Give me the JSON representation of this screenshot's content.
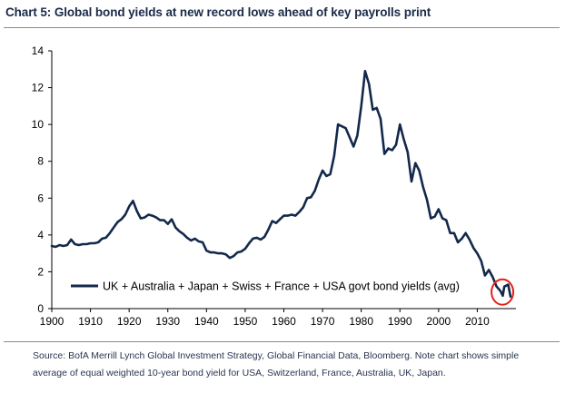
{
  "header": {
    "title": "Chart 5: Global bond yields at new record lows ahead of key payrolls print"
  },
  "footer": {
    "source": "Source: BofA Merrill Lynch Global Investment Strategy, Global Financial Data, Bloomberg. Note chart shows simple average of equal weighted 10-year bond yield for USA, Switzerland, France, Australia, UK, Japan."
  },
  "colors": {
    "series": "#13294b",
    "highlight": "#e32118",
    "axis": "#000000"
  },
  "chart_data": {
    "type": "line",
    "title": "Chart 5: Global bond yields at new record lows ahead of key payrolls print",
    "xlabel": "",
    "ylabel": "",
    "xlim": [
      1900,
      2020
    ],
    "ylim": [
      0,
      14
    ],
    "x_ticks": [
      1900,
      1910,
      1920,
      1930,
      1940,
      1950,
      1960,
      1970,
      1980,
      1990,
      2000,
      2010
    ],
    "y_ticks": [
      0,
      2,
      4,
      6,
      8,
      10,
      12,
      14
    ],
    "grid": false,
    "legend_position": "bottom-left",
    "annotations": [
      {
        "type": "circle",
        "x": 2016.5,
        "y": 0.9,
        "color": "#e32118",
        "note": "record low"
      }
    ],
    "series": [
      {
        "name": "UK + Australia + Japan + Swiss + France + USA govt bond yields (avg)",
        "points": [
          [
            1900,
            3.4
          ],
          [
            1901,
            3.35
          ],
          [
            1902,
            3.45
          ],
          [
            1903,
            3.4
          ],
          [
            1904,
            3.45
          ],
          [
            1905,
            3.75
          ],
          [
            1906,
            3.5
          ],
          [
            1907,
            3.45
          ],
          [
            1908,
            3.5
          ],
          [
            1909,
            3.5
          ],
          [
            1910,
            3.55
          ],
          [
            1911,
            3.55
          ],
          [
            1912,
            3.6
          ],
          [
            1913,
            3.8
          ],
          [
            1914,
            3.85
          ],
          [
            1915,
            4.1
          ],
          [
            1916,
            4.4
          ],
          [
            1917,
            4.7
          ],
          [
            1918,
            4.85
          ],
          [
            1919,
            5.1
          ],
          [
            1920,
            5.55
          ],
          [
            1921,
            5.85
          ],
          [
            1922,
            5.3
          ],
          [
            1923,
            4.9
          ],
          [
            1924,
            4.95
          ],
          [
            1925,
            5.1
          ],
          [
            1926,
            5.05
          ],
          [
            1927,
            4.95
          ],
          [
            1928,
            4.8
          ],
          [
            1929,
            4.8
          ],
          [
            1930,
            4.6
          ],
          [
            1931,
            4.85
          ],
          [
            1932,
            4.4
          ],
          [
            1933,
            4.2
          ],
          [
            1934,
            4.05
          ],
          [
            1935,
            3.85
          ],
          [
            1936,
            3.7
          ],
          [
            1937,
            3.8
          ],
          [
            1938,
            3.65
          ],
          [
            1939,
            3.6
          ],
          [
            1940,
            3.15
          ],
          [
            1941,
            3.05
          ],
          [
            1942,
            3.05
          ],
          [
            1943,
            3.0
          ],
          [
            1944,
            3.0
          ],
          [
            1945,
            2.95
          ],
          [
            1946,
            2.75
          ],
          [
            1947,
            2.85
          ],
          [
            1948,
            3.05
          ],
          [
            1949,
            3.1
          ],
          [
            1950,
            3.25
          ],
          [
            1951,
            3.55
          ],
          [
            1952,
            3.8
          ],
          [
            1953,
            3.85
          ],
          [
            1954,
            3.75
          ],
          [
            1955,
            3.9
          ],
          [
            1956,
            4.3
          ],
          [
            1957,
            4.75
          ],
          [
            1958,
            4.65
          ],
          [
            1959,
            4.85
          ],
          [
            1960,
            5.05
          ],
          [
            1961,
            5.05
          ],
          [
            1962,
            5.1
          ],
          [
            1963,
            5.05
          ],
          [
            1964,
            5.25
          ],
          [
            1965,
            5.5
          ],
          [
            1966,
            6.0
          ],
          [
            1967,
            6.05
          ],
          [
            1968,
            6.4
          ],
          [
            1969,
            7.0
          ],
          [
            1970,
            7.5
          ],
          [
            1971,
            7.2
          ],
          [
            1972,
            7.3
          ],
          [
            1973,
            8.3
          ],
          [
            1974,
            10.0
          ],
          [
            1975,
            9.9
          ],
          [
            1976,
            9.8
          ],
          [
            1977,
            9.3
          ],
          [
            1978,
            8.8
          ],
          [
            1979,
            9.4
          ],
          [
            1980,
            11.0
          ],
          [
            1981,
            12.9
          ],
          [
            1982,
            12.2
          ],
          [
            1983,
            10.8
          ],
          [
            1984,
            10.9
          ],
          [
            1985,
            10.3
          ],
          [
            1986,
            8.4
          ],
          [
            1987,
            8.7
          ],
          [
            1988,
            8.6
          ],
          [
            1989,
            8.9
          ],
          [
            1990,
            10.0
          ],
          [
            1991,
            9.2
          ],
          [
            1992,
            8.5
          ],
          [
            1993,
            6.9
          ],
          [
            1994,
            7.9
          ],
          [
            1995,
            7.5
          ],
          [
            1996,
            6.6
          ],
          [
            1997,
            5.9
          ],
          [
            1998,
            4.9
          ],
          [
            1999,
            5.0
          ],
          [
            2000,
            5.4
          ],
          [
            2001,
            4.9
          ],
          [
            2002,
            4.8
          ],
          [
            2003,
            4.1
          ],
          [
            2004,
            4.1
          ],
          [
            2005,
            3.6
          ],
          [
            2006,
            3.8
          ],
          [
            2007,
            4.1
          ],
          [
            2008,
            3.75
          ],
          [
            2009,
            3.3
          ],
          [
            2010,
            3.0
          ],
          [
            2011,
            2.6
          ],
          [
            2012,
            1.8
          ],
          [
            2013,
            2.1
          ],
          [
            2014,
            1.7
          ],
          [
            2015,
            1.2
          ],
          [
            2016,
            0.95
          ],
          [
            2016.6,
            0.7
          ],
          [
            2017,
            1.2
          ],
          [
            2018,
            1.3
          ],
          [
            2018.6,
            0.65
          ]
        ]
      }
    ]
  }
}
